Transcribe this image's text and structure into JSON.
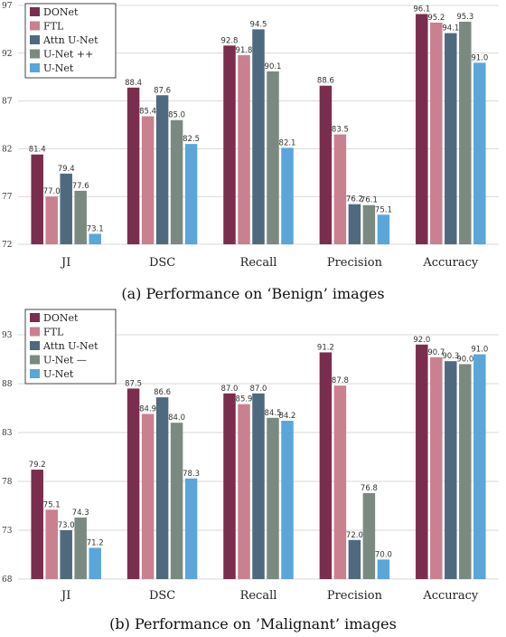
{
  "colors": [
    "#7b2d4e",
    "#c9808f",
    "#4f6a7e",
    "#7b8a80",
    "#5aa6d8"
  ],
  "chart_data": [
    {
      "type": "bar",
      "title": "(a)  Performance on ‘Benign’ images",
      "categories": [
        "JI",
        "DSC",
        "Recall",
        "Precision",
        "Accuracy"
      ],
      "series": [
        {
          "name": "DONet",
          "values": [
            81.4,
            88.4,
            92.8,
            88.6,
            96.1
          ]
        },
        {
          "name": "FTL",
          "values": [
            77.0,
            85.4,
            91.8,
            83.5,
            95.2
          ]
        },
        {
          "name": "Attn U-Net",
          "values": [
            79.4,
            87.6,
            94.5,
            76.2,
            94.1
          ]
        },
        {
          "name": "U-Net ++",
          "values": [
            77.6,
            85.0,
            90.1,
            76.1,
            95.3
          ]
        },
        {
          "name": "U-Net",
          "values": [
            73.1,
            82.5,
            82.1,
            75.1,
            91.0
          ]
        }
      ],
      "ylim": [
        72,
        97
      ],
      "yticks": [
        72,
        77,
        82,
        87,
        92,
        97
      ],
      "legend": "top-left",
      "grid": true
    },
    {
      "type": "bar",
      "title": "(b)  Performance on ’Malignant’ images",
      "categories": [
        "JI",
        "DSC",
        "Recall",
        "Precision",
        "Accuracy"
      ],
      "series": [
        {
          "name": "DONet",
          "values": [
            79.2,
            87.5,
            87.0,
            91.2,
            92.0
          ]
        },
        {
          "name": "FTL",
          "values": [
            75.1,
            84.9,
            85.9,
            87.8,
            90.7
          ]
        },
        {
          "name": "Attn U-Net",
          "values": [
            73.0,
            86.6,
            87.0,
            72.0,
            90.3
          ]
        },
        {
          "name": "U-Net —",
          "values": [
            74.3,
            84.0,
            84.5,
            76.8,
            90.0
          ]
        },
        {
          "name": "U-Net",
          "values": [
            71.2,
            78.3,
            84.2,
            70.0,
            91.0
          ]
        }
      ],
      "value_labels": [
        [
          "79.2",
          "75.1",
          "73.0",
          "74.3",
          "71.2"
        ],
        [
          "87.5",
          "84.9",
          "86.6",
          "84.0",
          "78.3"
        ],
        [
          "87.0",
          "85.9",
          "87.0",
          "84.5",
          "84.2"
        ],
        [
          "91.2",
          "87.8",
          "72.0",
          "76.8",
          "70.0"
        ],
        [
          "92.0",
          "90.7",
          "90.3",
          "90.0",
          "91.0"
        ]
      ],
      "ylim": [
        68,
        93
      ],
      "yticks": [
        68,
        73,
        78,
        83,
        88,
        93
      ],
      "legend": "top-left",
      "grid": true
    }
  ]
}
